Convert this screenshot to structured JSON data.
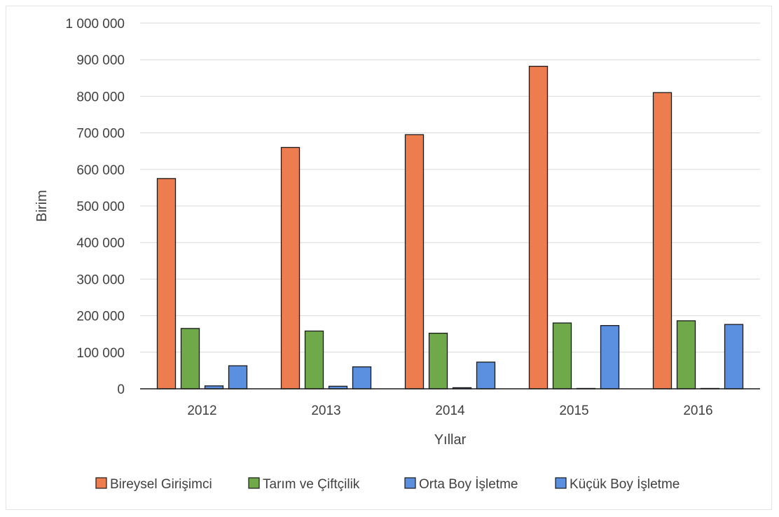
{
  "chart_data": {
    "type": "bar",
    "xlabel": "Yıllar",
    "ylabel": "Birim",
    "ylim": [
      0,
      1000000
    ],
    "y_ticks": [
      "0",
      "100 000",
      "200 000",
      "300 000",
      "400 000",
      "500 000",
      "600 000",
      "700 000",
      "800 000",
      "900 000",
      "1 000 000"
    ],
    "y_tick_values": [
      0,
      100000,
      200000,
      300000,
      400000,
      500000,
      600000,
      700000,
      800000,
      900000,
      1000000
    ],
    "categories": [
      "2012",
      "2013",
      "2014",
      "2015",
      "2016"
    ],
    "grid": true,
    "legend_position": "bottom",
    "series": [
      {
        "name": "Bireysel Girişimci",
        "color": "#ed7d4f",
        "values": [
          575000,
          660000,
          695000,
          882000,
          810000
        ]
      },
      {
        "name": "Tarım ve Çiftçilik",
        "color": "#6fa94a",
        "values": [
          165000,
          158000,
          152000,
          180000,
          186000
        ]
      },
      {
        "name": "Orta Boy İşletme",
        "color": "#5b8fe0",
        "values": [
          8000,
          7000,
          3000,
          1000,
          1000
        ]
      },
      {
        "name": "Küçük Boy İşletme",
        "color": "#5b8fe0",
        "values": [
          63000,
          60000,
          73000,
          173000,
          176000
        ]
      }
    ]
  }
}
